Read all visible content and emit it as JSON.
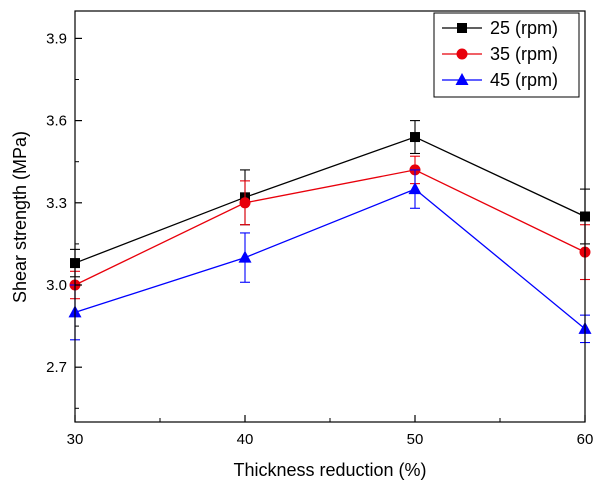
{
  "chart_data": {
    "type": "line",
    "xlabel": "Thickness reduction (%)",
    "ylabel": "Shear strength (MPa)",
    "xlim": [
      30,
      60
    ],
    "ylim": [
      2.5,
      4.0
    ],
    "x_ticks": [
      30,
      40,
      50,
      60
    ],
    "y_ticks": [
      2.7,
      3.0,
      3.3,
      3.6,
      3.9
    ],
    "x": [
      30,
      40,
      50,
      60
    ],
    "grid": false,
    "legend_position": "top-right",
    "series": [
      {
        "name": "25 (rpm)",
        "color": "#000000",
        "marker": "square",
        "values": [
          3.08,
          3.32,
          3.54,
          3.25
        ],
        "errors": [
          0.05,
          0.1,
          0.06,
          0.1
        ]
      },
      {
        "name": "35 (rpm)",
        "color": "#e8000b",
        "marker": "circle",
        "values": [
          3.0,
          3.3,
          3.42,
          3.12
        ],
        "errors": [
          0.05,
          0.08,
          0.05,
          0.1
        ]
      },
      {
        "name": "45 (rpm)",
        "color": "#0000ff",
        "marker": "triangle",
        "values": [
          2.9,
          3.1,
          3.35,
          2.84
        ],
        "errors": [
          0.1,
          0.09,
          0.07,
          0.05
        ]
      }
    ]
  }
}
